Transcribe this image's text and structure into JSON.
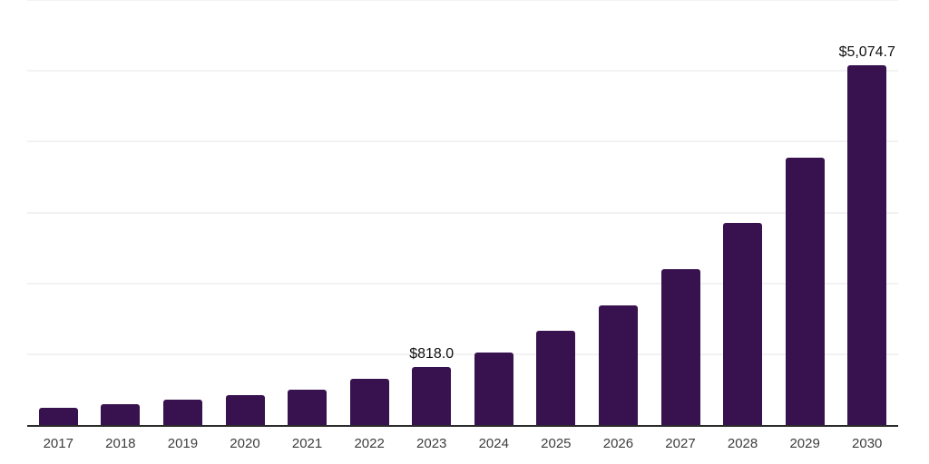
{
  "chart_data": {
    "type": "bar",
    "categories": [
      "2017",
      "2018",
      "2019",
      "2020",
      "2021",
      "2022",
      "2023",
      "2024",
      "2025",
      "2026",
      "2027",
      "2028",
      "2029",
      "2030"
    ],
    "values": [
      240,
      290,
      355,
      425,
      500,
      650,
      818.0,
      1030,
      1330,
      1690,
      2195,
      2855,
      3775,
      5074.7
    ],
    "value_labels": [
      {
        "category": "2023",
        "text": "$818.0"
      },
      {
        "category": "2030",
        "text": "$5,074.7"
      }
    ],
    "ylim": [
      0,
      6000
    ],
    "gridline_interval": 1000,
    "grid": true,
    "legend": false
  },
  "style": {
    "bar_color": "#38124e",
    "axis_line_color": "#2b2b2b",
    "gridline_color": "#f2f2f2",
    "value_label_color": "#111111",
    "tick_label_color": "#3d3d3d",
    "background_color": "#ffffff"
  }
}
